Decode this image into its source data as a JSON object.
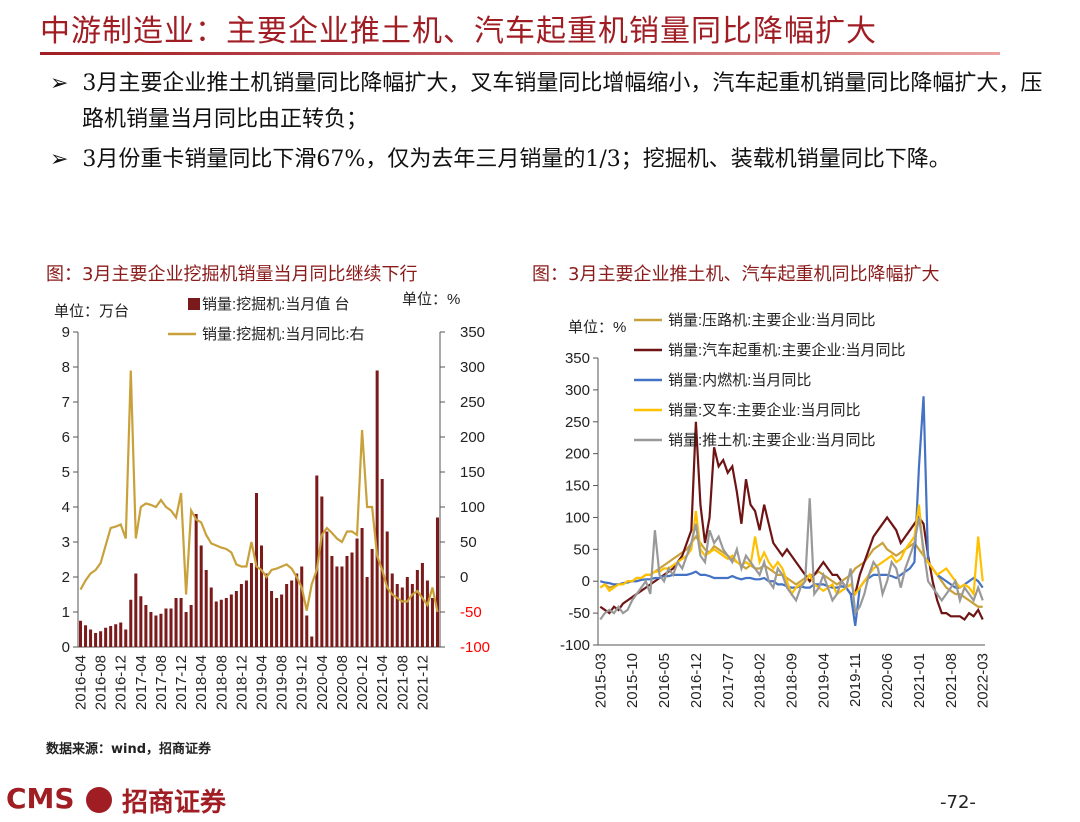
{
  "header": {
    "title": "中游制造业：主要企业推土机、汽车起重机销量同比降幅扩大"
  },
  "bullets": [
    "3月主要企业推土机销量同比降幅扩大，叉车销量同比增幅缩小，汽车起重机销量同比降幅扩大，压路机销量当月同比由正转负；",
    "3月份重卡销量同比下滑67%，仅为去年三月销量的1/3；挖掘机、装载机销量同比下降。"
  ],
  "chart_data": [
    {
      "type": "bar",
      "title": "图：3月主要企业挖掘机销量当月同比继续下行",
      "unit_left": "单位：万台",
      "unit_right": "单位：%",
      "categories": [
        "2016-04",
        null,
        null,
        null,
        "2016-08",
        null,
        null,
        null,
        "2016-12",
        null,
        null,
        null,
        "2017-04",
        null,
        null,
        null,
        "2017-08",
        null,
        null,
        null,
        "2017-12",
        null,
        null,
        null,
        "2018-04",
        null,
        null,
        null,
        "2018-08",
        null,
        null,
        null,
        "2018-12",
        null,
        null,
        null,
        "2019-04",
        null,
        null,
        null,
        "2019-08",
        null,
        null,
        null,
        "2019-12",
        null,
        null,
        null,
        "2020-04",
        null,
        null,
        null,
        "2020-08",
        null,
        null,
        null,
        "2020-12",
        null,
        null,
        null,
        "2021-04",
        null,
        null,
        null,
        "2021-08",
        null,
        null,
        null,
        "2021-12",
        null,
        null,
        null
      ],
      "series": [
        {
          "name": "销量:挖掘机:当月值 台",
          "type": "bar",
          "color": "#7b1a1a",
          "values": [
            0.75,
            0.62,
            0.5,
            0.4,
            0.45,
            0.55,
            0.6,
            0.65,
            0.7,
            0.5,
            1.35,
            2.1,
            1.45,
            1.2,
            1.0,
            0.9,
            0.95,
            1.1,
            1.1,
            1.4,
            1.4,
            1.0,
            1.2,
            3.8,
            2.9,
            2.2,
            1.7,
            1.3,
            1.35,
            1.4,
            1.5,
            1.6,
            1.8,
            1.9,
            2.4,
            4.4,
            2.9,
            2.1,
            1.6,
            1.4,
            1.5,
            1.8,
            1.9,
            2.1,
            2.3,
            0.9,
            0.3,
            4.9,
            4.3,
            3.3,
            2.6,
            2.3,
            2.3,
            2.6,
            2.7,
            3.1,
            3.4,
            2.0,
            2.8,
            7.9,
            4.8,
            3.3,
            2.1,
            1.8,
            1.7,
            2.0,
            1.8,
            2.2,
            2.4,
            1.9,
            1.4,
            3.7
          ]
        },
        {
          "name": "销量:挖掘机:当月同比:右",
          "type": "line",
          "axis": "y2",
          "color": "#c9a13b",
          "values": [
            -18,
            -5,
            5,
            10,
            20,
            45,
            70,
            72,
            75,
            55,
            295,
            55,
            100,
            105,
            103,
            100,
            110,
            100,
            95,
            85,
            120,
            -25,
            95,
            82,
            78,
            60,
            48,
            45,
            42,
            40,
            35,
            18,
            15,
            15,
            50,
            15,
            10,
            0,
            10,
            12,
            15,
            18,
            12,
            0,
            -15,
            -48,
            -10,
            10,
            60,
            70,
            63,
            55,
            50,
            65,
            65,
            60,
            210,
            100,
            100,
            30,
            10,
            -15,
            -25,
            -30,
            -35,
            -35,
            -25,
            -20,
            -30,
            -40,
            -15,
            -50
          ]
        }
      ],
      "ylim": [
        0,
        9
      ],
      "yticks": [
        0,
        1,
        2,
        3,
        4,
        5,
        6,
        7,
        8,
        9
      ],
      "y2lim": [
        -100,
        350
      ],
      "y2ticks": [
        -100,
        -50,
        0,
        50,
        100,
        150,
        200,
        250,
        300,
        350
      ],
      "y2_negative_tick_color": "#ff0000"
    },
    {
      "type": "line",
      "title": "图：3月主要企业推土机、汽车起重机同比降幅扩大",
      "unit_left": "单位：%",
      "categories": [
        "2015-03",
        null,
        null,
        null,
        null,
        null,
        null,
        "2015-10",
        null,
        null,
        null,
        null,
        null,
        null,
        "2016-05",
        null,
        null,
        null,
        null,
        null,
        null,
        "2016-12",
        null,
        null,
        null,
        null,
        null,
        null,
        "2017-07",
        null,
        null,
        null,
        null,
        null,
        null,
        "2018-02",
        null,
        null,
        null,
        null,
        null,
        null,
        "2018-09",
        null,
        null,
        null,
        null,
        null,
        null,
        "2019-04",
        null,
        null,
        null,
        null,
        null,
        null,
        "2019-11",
        null,
        null,
        null,
        null,
        null,
        null,
        "2020-06",
        null,
        null,
        null,
        null,
        null,
        null,
        "2021-01",
        null,
        null,
        null,
        null,
        null,
        null,
        "2021-08",
        null,
        null,
        null,
        null,
        null,
        null,
        "2022-03"
      ],
      "series": [
        {
          "name": "销量:压路机:主要企业:当月同比",
          "color": "#c9a13b",
          "values": [
            -10,
            -5,
            -10,
            -8,
            -5,
            -5,
            0,
            0,
            5,
            5,
            10,
            10,
            15,
            20,
            25,
            30,
            35,
            40,
            45,
            50,
            60,
            70,
            60,
            50,
            45,
            55,
            50,
            45,
            40,
            35,
            30,
            25,
            20,
            25,
            20,
            20,
            25,
            20,
            15,
            10,
            10,
            5,
            0,
            -5,
            0,
            5,
            10,
            10,
            15,
            10,
            5,
            0,
            -5,
            0,
            5,
            10,
            20,
            25,
            30,
            40,
            50,
            55,
            60,
            50,
            45,
            40,
            45,
            50,
            55,
            60,
            50,
            40,
            30,
            20,
            10,
            0,
            -10,
            -15,
            -20,
            -20,
            -25,
            -30,
            -35,
            -40,
            -40
          ]
        },
        {
          "name": "销量:汽车起重机:主要企业:当月同比",
          "color": "#6e1414",
          "values": [
            -40,
            -45,
            -50,
            -40,
            -45,
            -35,
            -30,
            -25,
            -20,
            -15,
            -10,
            -5,
            0,
            5,
            10,
            15,
            20,
            30,
            40,
            60,
            80,
            250,
            120,
            60,
            100,
            210,
            180,
            190,
            170,
            180,
            140,
            90,
            160,
            120,
            110,
            80,
            120,
            90,
            60,
            50,
            40,
            50,
            40,
            30,
            20,
            10,
            0,
            10,
            20,
            30,
            20,
            10,
            10,
            0,
            -10,
            -20,
            -20,
            10,
            30,
            50,
            70,
            80,
            90,
            100,
            90,
            80,
            60,
            70,
            80,
            90,
            100,
            90,
            40,
            0,
            -30,
            -50,
            -50,
            -55,
            -55,
            -55,
            -60,
            -50,
            -55,
            -45,
            -60
          ]
        },
        {
          "name": "销量:内燃机:当月同比",
          "color": "#4472c4",
          "values": [
            0,
            -2,
            -3,
            -5,
            -5,
            -3,
            -2,
            0,
            0,
            2,
            3,
            3,
            5,
            5,
            8,
            8,
            10,
            10,
            10,
            10,
            12,
            15,
            10,
            10,
            8,
            5,
            5,
            5,
            5,
            8,
            5,
            3,
            5,
            5,
            3,
            3,
            5,
            0,
            0,
            -5,
            -5,
            -8,
            -10,
            -10,
            -8,
            -10,
            -10,
            -5,
            -5,
            -5,
            -8,
            -10,
            -10,
            -8,
            -10,
            -20,
            -70,
            -10,
            0,
            5,
            10,
            10,
            10,
            10,
            8,
            5,
            10,
            15,
            20,
            30,
            180,
            290,
            30,
            20,
            10,
            5,
            0,
            -5,
            -10,
            -10,
            -5,
            0,
            5,
            0,
            -10
          ]
        },
        {
          "name": "销量:叉车:主要企业:当月同比",
          "color": "#ffc000",
          "values": [
            -10,
            -5,
            -15,
            -10,
            -5,
            -5,
            0,
            0,
            5,
            5,
            10,
            10,
            15,
            15,
            20,
            20,
            25,
            30,
            35,
            40,
            50,
            110,
            50,
            40,
            45,
            50,
            45,
            40,
            35,
            40,
            30,
            25,
            30,
            25,
            70,
            30,
            45,
            30,
            20,
            30,
            20,
            0,
            -20,
            -10,
            -5,
            0,
            10,
            -5,
            -10,
            -15,
            -10,
            -5,
            -20,
            -15,
            -10,
            -5,
            -20,
            -10,
            0,
            10,
            20,
            25,
            30,
            35,
            40,
            30,
            35,
            50,
            60,
            70,
            120,
            40,
            30,
            20,
            10,
            15,
            20,
            10,
            0,
            -10,
            -5,
            -10,
            -20,
            70,
            0
          ]
        },
        {
          "name": "销量:推土机:主要企业:当月同比",
          "color": "#999999",
          "values": [
            -60,
            -50,
            -45,
            -50,
            -40,
            -50,
            -45,
            -30,
            -20,
            -10,
            0,
            -20,
            80,
            10,
            0,
            20,
            10,
            30,
            20,
            40,
            60,
            90,
            40,
            30,
            80,
            60,
            70,
            50,
            40,
            30,
            50,
            20,
            40,
            30,
            20,
            10,
            30,
            0,
            -10,
            20,
            10,
            -10,
            -20,
            -30,
            -10,
            0,
            130,
            -20,
            -10,
            10,
            -10,
            -30,
            -20,
            0,
            -10,
            20,
            -50,
            -40,
            -20,
            10,
            30,
            20,
            -20,
            0,
            30,
            20,
            -10,
            20,
            40,
            60,
            100,
            50,
            0,
            -10,
            -20,
            -30,
            -20,
            -10,
            0,
            -30,
            -10,
            -20,
            -30,
            -10,
            -30
          ]
        }
      ],
      "ylim": [
        -100,
        350
      ],
      "yticks": [
        -100,
        -50,
        0,
        50,
        100,
        150,
        200,
        250,
        300,
        350
      ]
    }
  ],
  "source": "数据来源：wind，招商证券",
  "footer": {
    "logo_text": "CMS",
    "brand": "招商证券",
    "page": "-72-"
  }
}
